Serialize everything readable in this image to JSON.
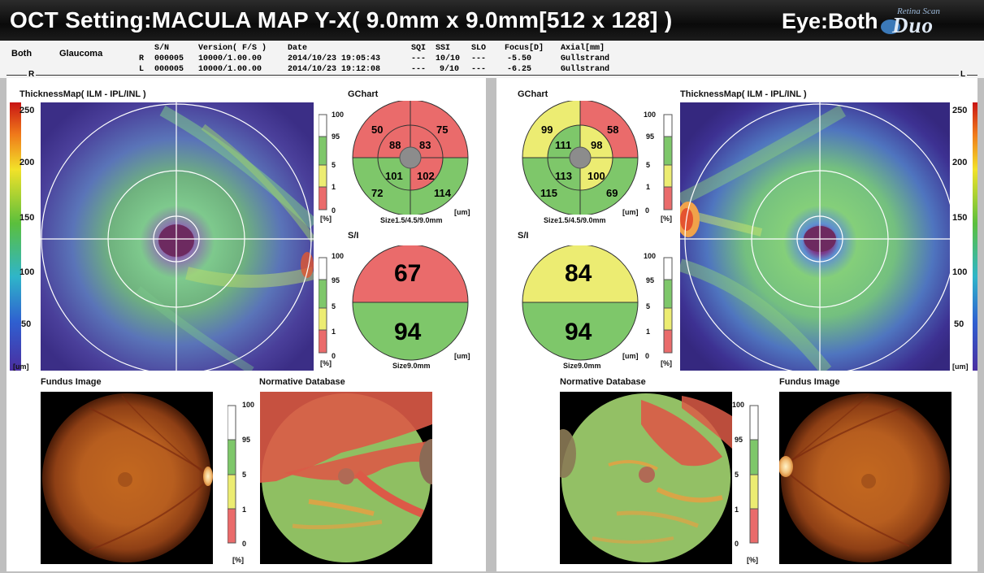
{
  "header": {
    "title": "OCT Setting:MACULA MAP Y-X( 9.0mm x 9.0mm[512 x 128] )",
    "eye": "Eye:Both",
    "brand_small": "Retina Scan",
    "brand_big": "Duo"
  },
  "info": {
    "mode": "Both",
    "diagnosis": "Glaucoma",
    "columns": [
      "S/N",
      "Version( F/S )",
      "Date",
      "SQI",
      "SSI",
      "SLO",
      "Focus[D]",
      "Axial[mm]"
    ],
    "rows": [
      {
        "eye": "R",
        "sn": "000005",
        "version": "10000/1.00.00",
        "date": "2014/10/23 19:05:43",
        "sqi": "---",
        "ssi": "10/10",
        "slo": "---",
        "focus": "-5.50",
        "axial": "Gullstrand"
      },
      {
        "eye": "L",
        "sn": "000005",
        "version": "10000/1.00.00",
        "date": "2014/10/23 19:12:08",
        "sqi": "---",
        "ssi": "9/10",
        "slo": "---",
        "focus": "-6.25",
        "axial": "Gullstrand"
      }
    ]
  },
  "right_eye": {
    "side_label": "R",
    "thickness_title": "ThicknessMap( ILM - IPL/INL )",
    "scale_ticks": [
      "250",
      "200",
      "150",
      "100",
      "50"
    ],
    "scale_unit": "[um]",
    "gchart_title": "GChart",
    "gchart_outer": [
      "50",
      "75",
      "72",
      "114"
    ],
    "gchart_inner": [
      "88",
      "83",
      "101",
      "102"
    ],
    "gchart_size": "Size1.5/4.5/9.0mm",
    "gchart_unit": "[um]",
    "si_title": "S/I",
    "si_superior": "67",
    "si_inferior": "94",
    "si_size": "Size9.0mm",
    "si_unit": "[um]",
    "pct_ticks": [
      "100",
      "95",
      "5",
      "1",
      "0"
    ],
    "pct_unit": "[%]",
    "fundus_title": "Fundus Image",
    "normative_title": "Normative Database"
  },
  "left_eye": {
    "side_label": "L",
    "thickness_title": "ThicknessMap( ILM - IPL/INL )",
    "scale_ticks": [
      "250",
      "200",
      "150",
      "100",
      "50"
    ],
    "scale_unit": "[um]",
    "gchart_title": "GChart",
    "gchart_outer": [
      "99",
      "58",
      "115",
      "69"
    ],
    "gchart_inner": [
      "111",
      "98",
      "113",
      "100"
    ],
    "gchart_size": "Size1.5/4.5/9.0mm",
    "gchart_unit": "[um]",
    "si_title": "S/I",
    "si_superior": "84",
    "si_inferior": "94",
    "si_size": "Size9.0mm",
    "si_unit": "[um]",
    "pct_ticks": [
      "100",
      "95",
      "5",
      "1",
      "0"
    ],
    "pct_unit": "[%]",
    "fundus_title": "Fundus Image",
    "normative_title": "Normative Database"
  },
  "colors": {
    "normal_green": "#7ec76a",
    "borderline_yellow": "#ecec72",
    "abnormal_red": "#ea6b6b",
    "title_bg": "#111111"
  }
}
